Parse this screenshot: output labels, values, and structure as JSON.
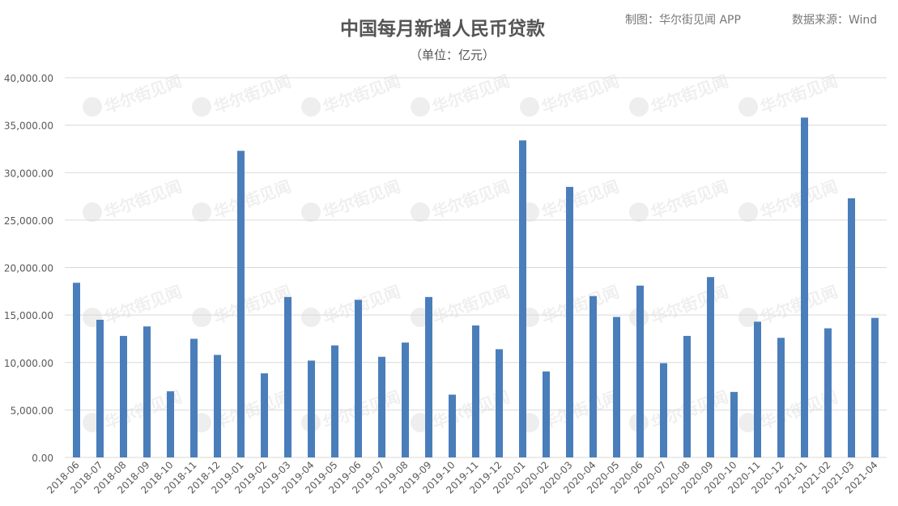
{
  "header": {
    "credit": "制图：华尔街见闻 APP",
    "source": "数据来源：Wind"
  },
  "watermark": "华尔街见闻",
  "colors": {
    "bar": "#4a7ebb",
    "grid": "#d9d9d9",
    "text": "#595959"
  },
  "chart_data": {
    "type": "bar",
    "title": "中国每月新增人民币贷款",
    "subtitle": "（单位：亿元）",
    "xlabel": "",
    "ylabel": "",
    "ylim": [
      0,
      40000
    ],
    "yticks": [
      "0.00",
      "5,000.00",
      "10,000.00",
      "15,000.00",
      "20,000.00",
      "25,000.00",
      "30,000.00",
      "35,000.00",
      "40,000.00"
    ],
    "grid": true,
    "categories": [
      "2018-06",
      "2018-07",
      "2018-08",
      "2018-09",
      "2018-10",
      "2018-11",
      "2018-12",
      "2019-01",
      "2019-02",
      "2019-03",
      "2019-04",
      "2019-05",
      "2019-06",
      "2019-07",
      "2019-08",
      "2019-09",
      "2019-10",
      "2019-11",
      "2019-12",
      "2020-01",
      "2020-02",
      "2020-03",
      "2020-04",
      "2020-05",
      "2020-06",
      "2020-07",
      "2020-08",
      "2020-09",
      "2020-10",
      "2020-11",
      "2020-12",
      "2021-01",
      "2021-02",
      "2021-03",
      "2021-04"
    ],
    "values": [
      18400,
      14500,
      12800,
      13800,
      6970,
      12500,
      10800,
      32300,
      8858,
      16900,
      10200,
      11800,
      16600,
      10600,
      12100,
      16900,
      6613,
      13900,
      11400,
      33400,
      9057,
      28500,
      17000,
      14800,
      18100,
      9927,
      12800,
      19000,
      6898,
      14300,
      12600,
      35800,
      13600,
      27300,
      14700
    ]
  }
}
